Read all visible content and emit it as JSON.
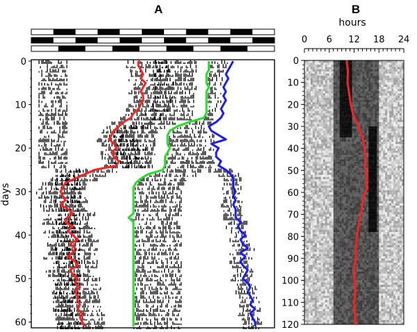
{
  "colors": {
    "red": "#ff1f1f",
    "green": "#22e022",
    "blue": "#1a1aff",
    "ink": "#000000"
  },
  "chart_data": [
    {
      "panel": "A",
      "type": "actogram",
      "ylabel": "days",
      "ylim": [
        0,
        61
      ],
      "yticks": [
        0,
        10,
        20,
        30,
        40,
        50,
        60
      ],
      "inverted_y": true,
      "light_bars": [
        {
          "pattern": [
            0,
            1,
            0,
            1,
            0,
            1,
            0,
            1,
            0,
            1,
            0
          ]
        },
        {
          "pattern": [
            1,
            0,
            1,
            0,
            1,
            0,
            1,
            0,
            1,
            0,
            1
          ]
        },
        {
          "pattern": [
            0,
            1,
            0,
            1,
            0,
            1,
            0,
            1,
            0
          ]
        }
      ],
      "series": [
        {
          "color": "red",
          "x_fraction": [
            0.44,
            0.44,
            0.45,
            0.46,
            0.45,
            0.47,
            0.46,
            0.45,
            0.46,
            0.46,
            0.45,
            0.44,
            0.42,
            0.41,
            0.38,
            0.36,
            0.34,
            0.33,
            0.32,
            0.34,
            0.35,
            0.33,
            0.34,
            0.36,
            0.35,
            0.26,
            0.22,
            0.18,
            0.14,
            0.13,
            0.12,
            0.13,
            0.14,
            0.12,
            0.15,
            0.17,
            0.15,
            0.14,
            0.17,
            0.15,
            0.17,
            0.19,
            0.16,
            0.18,
            0.17,
            0.15,
            0.18,
            0.19,
            0.16,
            0.17,
            0.19,
            0.18,
            0.2,
            0.18,
            0.19,
            0.19,
            0.2,
            0.19,
            0.21,
            0.2,
            0.21,
            0.22
          ],
          "day": [
            0,
            1,
            2,
            3,
            4,
            5,
            6,
            7,
            8,
            9,
            10,
            11,
            12,
            13,
            14,
            15,
            16,
            17,
            18,
            19,
            20,
            21,
            22,
            23,
            24,
            25,
            26,
            27,
            28,
            29,
            30,
            31,
            32,
            33,
            34,
            35,
            36,
            37,
            38,
            39,
            40,
            41,
            42,
            43,
            44,
            45,
            46,
            47,
            48,
            49,
            50,
            51,
            52,
            53,
            54,
            55,
            56,
            57,
            58,
            59,
            60,
            61
          ]
        },
        {
          "color": "green",
          "x_fraction": [
            0.73,
            0.73,
            0.73,
            0.72,
            0.72,
            0.72,
            0.73,
            0.72,
            0.72,
            0.72,
            0.72,
            0.72,
            0.72,
            0.71,
            0.65,
            0.6,
            0.57,
            0.56,
            0.56,
            0.56,
            0.57,
            0.56,
            0.55,
            0.55,
            0.55,
            0.54,
            0.48,
            0.45,
            0.43,
            0.42,
            0.42,
            0.42,
            0.42,
            0.42,
            0.42,
            0.42,
            0.4,
            0.42,
            0.42,
            0.42,
            0.42,
            0.42,
            0.42,
            0.42,
            0.42,
            0.42,
            0.42,
            0.42,
            0.42,
            0.42,
            0.42,
            0.42,
            0.42,
            0.42,
            0.42,
            0.42,
            0.42,
            0.42,
            0.42,
            0.42,
            0.42,
            0.42
          ],
          "day": [
            0,
            1,
            2,
            3,
            4,
            5,
            6,
            7,
            8,
            9,
            10,
            11,
            12,
            13,
            14,
            15,
            16,
            17,
            18,
            19,
            20,
            21,
            22,
            23,
            24,
            25,
            26,
            27,
            28,
            29,
            30,
            31,
            32,
            33,
            34,
            35,
            36,
            37,
            38,
            39,
            40,
            41,
            42,
            43,
            44,
            45,
            46,
            47,
            48,
            49,
            50,
            51,
            52,
            53,
            54,
            55,
            56,
            57,
            58,
            59,
            60,
            61
          ]
        },
        {
          "color": "blue",
          "x_fraction": [
            0.83,
            0.82,
            0.81,
            0.8,
            0.81,
            0.8,
            0.79,
            0.8,
            0.79,
            0.8,
            0.79,
            0.78,
            0.79,
            0.78,
            0.76,
            0.73,
            0.74,
            0.77,
            0.8,
            0.74,
            0.77,
            0.76,
            0.76,
            0.78,
            0.77,
            0.8,
            0.82,
            0.83,
            0.83,
            0.83,
            0.84,
            0.83,
            0.84,
            0.83,
            0.84,
            0.84,
            0.84,
            0.86,
            0.85,
            0.86,
            0.88,
            0.86,
            0.87,
            0.89,
            0.86,
            0.88,
            0.86,
            0.87,
            0.89,
            0.88,
            0.87,
            0.89,
            0.9,
            0.89,
            0.9,
            0.91,
            0.9,
            0.92,
            0.9,
            0.91,
            0.92,
            0.92
          ],
          "day": [
            0,
            1,
            2,
            3,
            4,
            5,
            6,
            7,
            8,
            9,
            10,
            11,
            12,
            13,
            14,
            15,
            16,
            17,
            18,
            19,
            20,
            21,
            22,
            23,
            24,
            25,
            26,
            27,
            28,
            29,
            30,
            31,
            32,
            33,
            34,
            35,
            36,
            37,
            38,
            39,
            40,
            41,
            42,
            43,
            44,
            45,
            46,
            47,
            48,
            49,
            50,
            51,
            52,
            53,
            54,
            55,
            56,
            57,
            58,
            59,
            60,
            61
          ]
        }
      ]
    },
    {
      "panel": "B",
      "type": "heatmap",
      "xlabel": "hours",
      "xlim": [
        0,
        24
      ],
      "xticks": [
        0,
        6,
        12,
        18,
        24
      ],
      "ylim": [
        0,
        120
      ],
      "yticks": [
        0,
        10,
        20,
        30,
        40,
        50,
        60,
        70,
        80,
        90,
        100,
        110,
        120
      ],
      "inverted_y": true,
      "dark_band_hours": [
        7,
        18
      ],
      "black_onset_rows": {
        "early_end_day": 35,
        "early_start_hour": 8.7,
        "early_end_hour": 11.5,
        "late_start_day": 30,
        "late_start_hour": 15.7,
        "late_end_hour": 17.5,
        "late_end_day": 78
      },
      "series": [
        {
          "color": "red",
          "day": [
            0,
            5,
            10,
            15,
            20,
            25,
            28,
            32,
            36,
            40,
            44,
            48,
            52,
            56,
            58,
            60,
            64,
            68,
            72,
            76,
            80,
            85,
            90,
            95,
            100,
            105,
            110,
            115,
            120
          ],
          "hour": [
            10.2,
            10.5,
            10.4,
            10.8,
            11.2,
            11.8,
            12.6,
            13.4,
            14.2,
            14.5,
            14.8,
            14.6,
            15.0,
            14.9,
            15.2,
            14.6,
            14.1,
            13.8,
            13.4,
            13.0,
            12.7,
            12.4,
            12.4,
            12.0,
            12.1,
            12.3,
            12.0,
            12.2,
            12.3
          ]
        }
      ]
    }
  ],
  "labels": {
    "panel_a": "A",
    "panel_b": "B",
    "days": "days",
    "hours": "hours",
    "a_ticks": [
      "0",
      "10",
      "20",
      "30",
      "40",
      "50",
      "60"
    ],
    "b_xticks": [
      "0",
      "6",
      "12",
      "18",
      "24"
    ],
    "b_yticks": [
      "0",
      "10",
      "20",
      "30",
      "40",
      "50",
      "60",
      "70",
      "80",
      "90",
      "100",
      "110",
      "120"
    ]
  }
}
